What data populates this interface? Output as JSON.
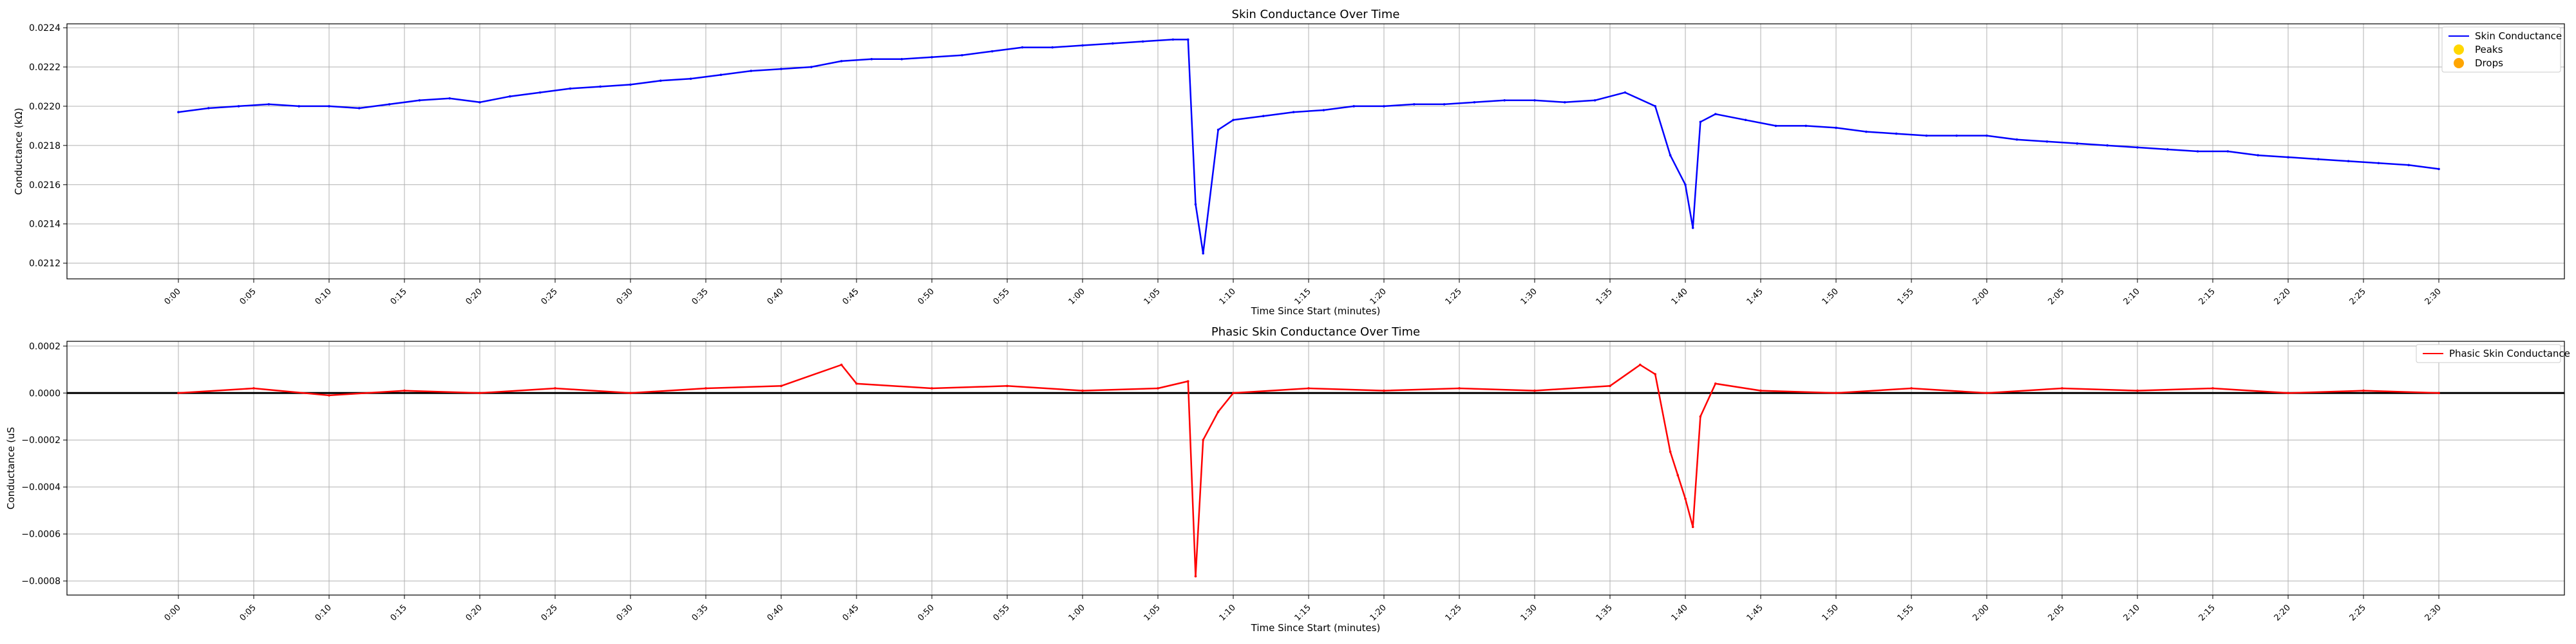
{
  "chart_data": [
    {
      "type": "line",
      "title": "Skin Conductance Over Time",
      "xlabel": "Time Since Start (minutes)",
      "ylabel": "Conductance (kΩ)",
      "xlim_seconds": [
        0,
        151
      ],
      "ylim": [
        0.02112,
        0.02242
      ],
      "yticks": [
        0.0212,
        0.0214,
        0.0216,
        0.0218,
        0.022,
        0.0222,
        0.0224
      ],
      "ytick_labels": [
        "0.0212",
        "0.0214",
        "0.0216",
        "0.0218",
        "0.0220",
        "0.0222",
        "0.0224"
      ],
      "xticks_seconds": [
        0,
        5,
        10,
        15,
        20,
        25,
        30,
        35,
        40,
        45,
        50,
        55,
        60,
        65,
        70,
        75,
        80,
        85,
        90,
        95,
        100,
        105,
        110,
        115,
        120,
        125,
        130,
        135,
        140,
        145,
        150
      ],
      "xtick_labels": [
        "0:00",
        "0:05",
        "0:10",
        "0:15",
        "0:20",
        "0:25",
        "0:30",
        "0:35",
        "0:40",
        "0:45",
        "0:50",
        "0:55",
        "1:00",
        "1:05",
        "1:10",
        "1:15",
        "1:20",
        "1:25",
        "1:30",
        "1:35",
        "1:40",
        "1:45",
        "1:50",
        "1:55",
        "2:00",
        "2:05",
        "2:10",
        "2:15",
        "2:20",
        "2:25",
        "2:30"
      ],
      "grid": true,
      "legend_position": "top-right",
      "series": [
        {
          "name": "Skin Conductance",
          "color": "#0000ff",
          "x": [
            0,
            2,
            4,
            6,
            8,
            10,
            12,
            14,
            16,
            18,
            20,
            22,
            24,
            26,
            28,
            30,
            32,
            34,
            36,
            38,
            40,
            42,
            44,
            46,
            48,
            50,
            52,
            54,
            56,
            58,
            60,
            62,
            64,
            66,
            67,
            67.5,
            68,
            69,
            70,
            72,
            74,
            76,
            78,
            80,
            82,
            84,
            86,
            88,
            90,
            92,
            94,
            96,
            98,
            99,
            100,
            100.5,
            101,
            102,
            104,
            106,
            108,
            110,
            112,
            114,
            116,
            118,
            120,
            122,
            124,
            126,
            128,
            130,
            132,
            134,
            136,
            138,
            140,
            142,
            144,
            146,
            148,
            150
          ],
          "y": [
            0.02197,
            0.02199,
            0.022,
            0.02201,
            0.022,
            0.022,
            0.02199,
            0.02201,
            0.02203,
            0.02204,
            0.02202,
            0.02205,
            0.02207,
            0.02209,
            0.0221,
            0.02211,
            0.02213,
            0.02214,
            0.02216,
            0.02218,
            0.02219,
            0.0222,
            0.02223,
            0.02224,
            0.02224,
            0.02225,
            0.02226,
            0.02228,
            0.0223,
            0.0223,
            0.02231,
            0.02232,
            0.02233,
            0.02234,
            0.02234,
            0.0215,
            0.02125,
            0.02188,
            0.02193,
            0.02195,
            0.02197,
            0.02198,
            0.022,
            0.022,
            0.02201,
            0.02201,
            0.02202,
            0.02203,
            0.02203,
            0.02202,
            0.02203,
            0.02207,
            0.022,
            0.02175,
            0.0216,
            0.02138,
            0.02192,
            0.02196,
            0.02193,
            0.0219,
            0.0219,
            0.02189,
            0.02187,
            0.02186,
            0.02185,
            0.02185,
            0.02185,
            0.02183,
            0.02182,
            0.02181,
            0.0218,
            0.02179,
            0.02178,
            0.02177,
            0.02177,
            0.02175,
            0.02174,
            0.02173,
            0.02172,
            0.02171,
            0.0217,
            0.02168
          ]
        },
        {
          "name": "Peaks",
          "color": "#ffd700",
          "marker": "circle",
          "x": [],
          "y": []
        },
        {
          "name": "Drops",
          "color": "#ffa500",
          "marker": "circle",
          "x": [],
          "y": []
        }
      ]
    },
    {
      "type": "line",
      "title": "Phasic Skin Conductance Over Time",
      "xlabel": "Time Since Start (minutes)",
      "ylabel": "Conductance (uS",
      "xlim_seconds": [
        0,
        151
      ],
      "ylim": [
        -0.00086,
        0.00022
      ],
      "yticks": [
        -0.0008,
        -0.0006,
        -0.0004,
        -0.0002,
        0.0,
        0.0002
      ],
      "ytick_labels": [
        "−0.0008",
        "−0.0006",
        "−0.0004",
        "−0.0002",
        "0.0000",
        "0.0002"
      ],
      "xticks_seconds": [
        0,
        5,
        10,
        15,
        20,
        25,
        30,
        35,
        40,
        45,
        50,
        55,
        60,
        65,
        70,
        75,
        80,
        85,
        90,
        95,
        100,
        105,
        110,
        115,
        120,
        125,
        130,
        135,
        140,
        145,
        150
      ],
      "xtick_labels": [
        "0:00",
        "0:05",
        "0:10",
        "0:15",
        "0:20",
        "0:25",
        "0:30",
        "0:35",
        "0:40",
        "0:45",
        "0:50",
        "0:55",
        "1:00",
        "1:05",
        "1:10",
        "1:15",
        "1:20",
        "1:25",
        "1:30",
        "1:35",
        "1:40",
        "1:45",
        "1:50",
        "1:55",
        "2:00",
        "2:05",
        "2:10",
        "2:15",
        "2:20",
        "2:25",
        "2:30"
      ],
      "grid": true,
      "legend_position": "top-right",
      "zero_line": {
        "y": 0.0,
        "color": "#000000"
      },
      "series": [
        {
          "name": "Phasic Skin Conductance",
          "color": "#ff0000",
          "x": [
            0,
            5,
            10,
            15,
            20,
            25,
            30,
            35,
            40,
            44,
            45,
            50,
            55,
            60,
            65,
            67,
            67.5,
            68,
            69,
            70,
            75,
            80,
            85,
            90,
            95,
            97,
            98,
            99,
            99.5,
            100,
            100.5,
            101,
            102,
            105,
            110,
            115,
            120,
            125,
            130,
            135,
            140,
            145,
            150
          ],
          "y": [
            0.0,
            2e-05,
            -1e-05,
            1e-05,
            0.0,
            2e-05,
            0.0,
            2e-05,
            3e-05,
            0.00012,
            4e-05,
            2e-05,
            3e-05,
            1e-05,
            2e-05,
            5e-05,
            -0.00078,
            -0.0002,
            -8e-05,
            0.0,
            2e-05,
            1e-05,
            2e-05,
            1e-05,
            3e-05,
            0.00012,
            8e-05,
            -0.00025,
            -0.00035,
            -0.00045,
            -0.00057,
            -0.0001,
            4e-05,
            1e-05,
            0.0,
            2e-05,
            0.0,
            2e-05,
            1e-05,
            2e-05,
            0.0,
            1e-05,
            0.0
          ]
        }
      ]
    }
  ]
}
